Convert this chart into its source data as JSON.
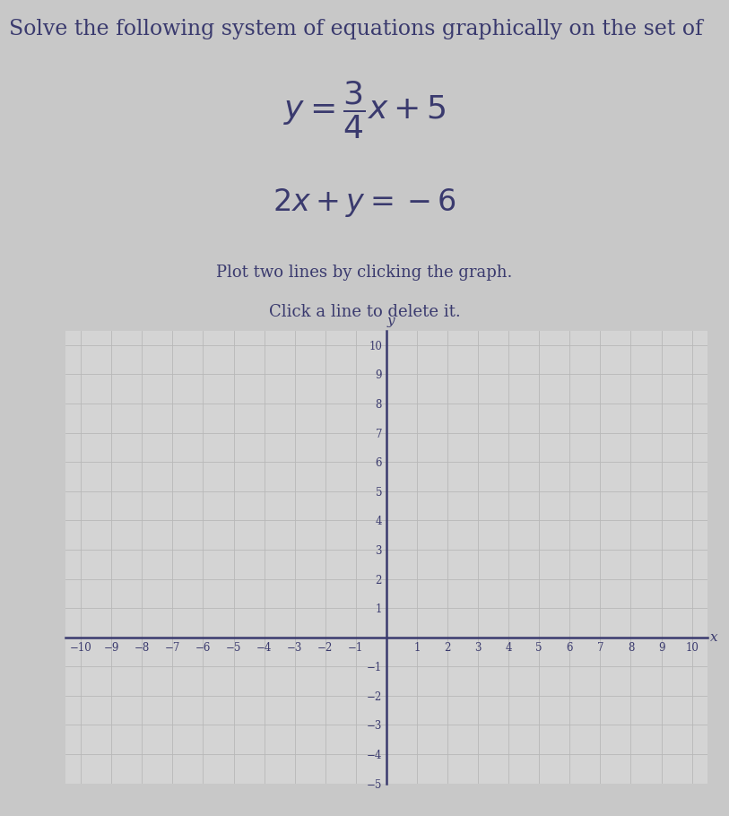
{
  "title_text": "Solve the following system of equations graphically on the set of",
  "eq1_latex": "$y = \\dfrac{3}{4}x + 5$",
  "eq2_latex": "$2x + y = -6$",
  "instruction1": "Plot two lines by clicking the graph.",
  "instruction2": "Click a line to delete it.",
  "xlabel": "x",
  "ylabel": "y",
  "xlim": [
    -10.5,
    10.5
  ],
  "ylim": [
    -5,
    10.5
  ],
  "axis_color": "#3a3a6e",
  "text_color": "#3a3a6e",
  "page_bg": "#c8c8c8",
  "title_bg": "#d0d0d0",
  "graph_bg": "#d4d4d4",
  "grid_color": "#b8b8b8",
  "title_fontsize": 17,
  "eq1_fontsize": 26,
  "eq2_fontsize": 24,
  "instr_fontsize": 13,
  "tick_fontsize": 8.5
}
